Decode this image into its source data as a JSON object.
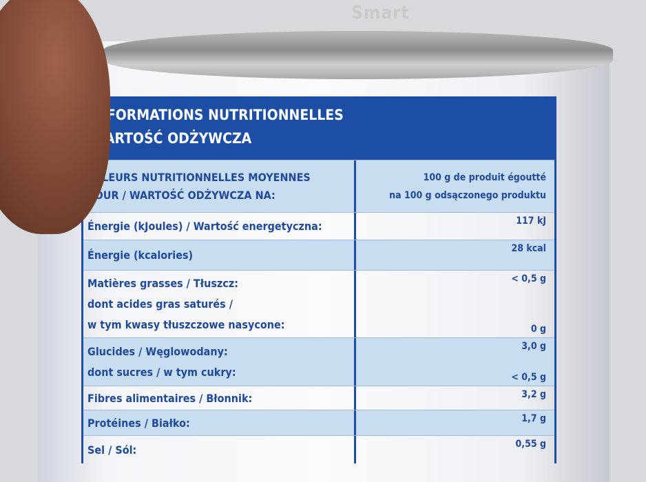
{
  "brand": "Smart",
  "header": {
    "lines": [
      "INFORMATIONS NUTRITIONNELLES",
      "WARTOŚĆ ODŻYWCZA"
    ]
  },
  "table": {
    "head": {
      "label": [
        "VALEURS NUTRITIONNELLES MOYENNES",
        "POUR / WARTOŚĆ ODŻYWCZA NA:"
      ],
      "value": [
        "100 g de produit égoutté",
        "na 100 g odsączonego produktu"
      ]
    },
    "rows": [
      {
        "label": [
          "Énergie (kJoules) / Wartość energetyczna:"
        ],
        "value": [
          "117 kJ"
        ]
      },
      {
        "label": [
          "Énergie (kcalories)"
        ],
        "value": [
          "28 kcal"
        ]
      },
      {
        "label": [
          "Matières grasses / Tłuszcz:",
          "dont acides gras saturés /",
          "w tym kwasy tłuszczowe nasycone:"
        ],
        "value": [
          "< 0,5 g",
          "0 g"
        ]
      },
      {
        "label": [
          "Glucides / Węglowodany:",
          "dont sucres / w tym cukry:"
        ],
        "value": [
          "3,0 g",
          "< 0,5 g"
        ]
      },
      {
        "label": [
          "Fibres alimentaires / Błonnik:"
        ],
        "value": [
          "3,2 g"
        ]
      },
      {
        "label": [
          "Protéines / Białko:"
        ],
        "value": [
          "1,7 g"
        ]
      },
      {
        "label": [
          "Sel / Sól:"
        ],
        "value": [
          "0,55 g"
        ]
      }
    ]
  }
}
